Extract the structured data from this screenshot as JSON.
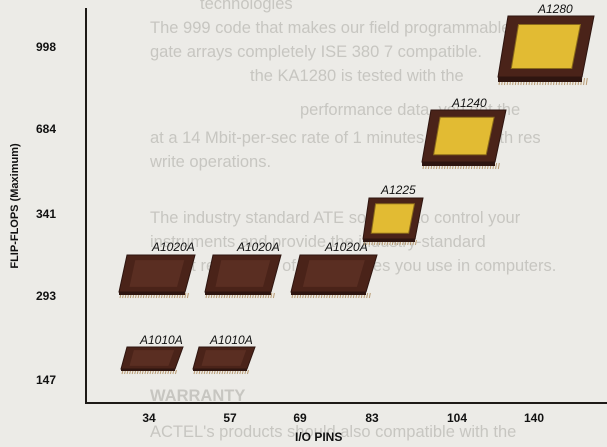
{
  "background_text": [
    "technologies",
    "The 999 code that makes our field programmable",
    "gate arrays completely ISE 380 7 compatible.",
    "the KA1280 is tested with the",
    "performance data, you get the",
    "at a 14 Mbit-per-sec rate of 1 minutes pre for both res",
    "write operations.",
    "The industry standard ATE software to control your",
    "instruments and provide the industry-standard",
    "output regardless of the modules you use in computers.",
    "WARRANTY",
    "ACTEL's products should also compatible with the"
  ],
  "axes": {
    "ylabel": "FLIP-FLOPS (Maximum)",
    "xlabel": "I/O PINS",
    "y_ticks": [
      "998",
      "684",
      "341",
      "293",
      "147"
    ],
    "x_ticks": [
      "34",
      "57",
      "69",
      "83",
      "104",
      "140"
    ]
  },
  "chips": [
    {
      "label": "A1280",
      "size": "xl",
      "die_color": "#e2bb33"
    },
    {
      "label": "A1240",
      "size": "l",
      "die_color": "#e2bb33"
    },
    {
      "label": "A1225",
      "size": "m",
      "die_color": "#e2bb33"
    },
    {
      "label": "A1020A",
      "size": "m",
      "die_color": "#5a2e22"
    },
    {
      "label": "A1020A",
      "size": "m",
      "die_color": "#5a2e22"
    },
    {
      "label": "A1020A",
      "size": "m",
      "die_color": "#5a2e22"
    },
    {
      "label": "A1010A",
      "size": "s",
      "die_color": "#5a2e22"
    },
    {
      "label": "A1010A",
      "size": "s",
      "die_color": "#5a2e22"
    }
  ],
  "colors": {
    "package": "#4a2319",
    "package_edge": "#2e1510",
    "pins": "#b89a72",
    "die_gold": "#e2bb33"
  }
}
